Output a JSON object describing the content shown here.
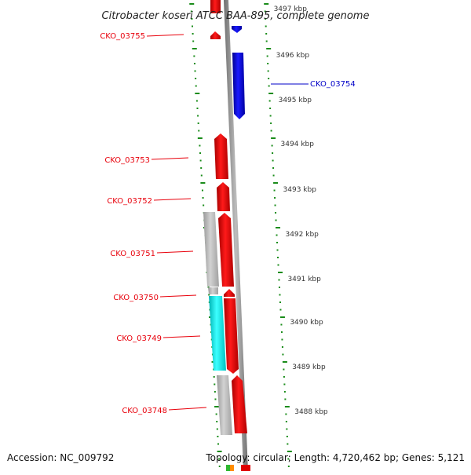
{
  "title": "Citrobacter koseri ATCC BAA-895, complete genome",
  "footer": {
    "accession": "Accession: NC_009792",
    "topology": "Topology: circular; Length: 4,720,462 bp; Genes: 5,121"
  },
  "scale_labels": [
    "3497 kbp",
    "3496 kbp",
    "3495 kbp",
    "3494 kbp",
    "3493 kbp",
    "3492 kbp",
    "3491 kbp",
    "3490 kbp",
    "3489 kbp",
    "3488 kbp"
  ],
  "gene_labels": [
    {
      "id": "CKO_03755",
      "side": "left",
      "color": "#e8000b"
    },
    {
      "id": "CKO_03754",
      "side": "right",
      "color": "#0000c8"
    },
    {
      "id": "CKO_03753",
      "side": "left",
      "color": "#e8000b"
    },
    {
      "id": "CKO_03752",
      "side": "left",
      "color": "#e8000b"
    },
    {
      "id": "CKO_03751",
      "side": "left",
      "color": "#e8000b"
    },
    {
      "id": "CKO_03750",
      "side": "left",
      "color": "#e8000b"
    },
    {
      "id": "CKO_03749",
      "side": "left",
      "color": "#e8000b"
    },
    {
      "id": "CKO_03748",
      "side": "left",
      "color": "#e8000b"
    }
  ],
  "colors": {
    "forward_gene": "#f00000",
    "reverse_gene": "#0000e6",
    "rna_gene": "#00e6e6",
    "other_feature": "#b4b4b4",
    "backbone": "#8c8c8c",
    "tick": "#1a8c1a"
  }
}
